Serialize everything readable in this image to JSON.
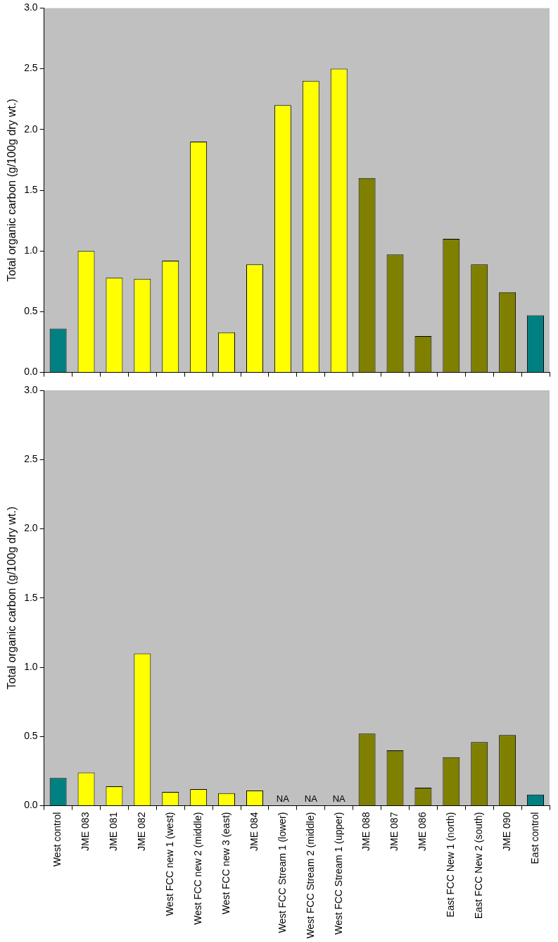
{
  "chart_data": [
    {
      "type": "bar",
      "ylabel": "Total organic carbon (g/100g dry wt.)",
      "tick_labels": "y",
      "grid": false,
      "categories": [
        null,
        null,
        null,
        null,
        null,
        null,
        null,
        null,
        null,
        null,
        null,
        null,
        null,
        null,
        null,
        null,
        null,
        null
      ],
      "values": [
        0.36,
        1.0,
        0.78,
        0.77,
        0.92,
        1.9,
        0.33,
        0.89,
        2.2,
        2.4,
        2.5,
        1.6,
        0.97,
        0.3,
        1.1,
        0.89,
        0.66,
        0.47
      ],
      "colors": [
        "#008080",
        "#ffff00",
        "#ffff00",
        "#ffff00",
        "#ffff00",
        "#ffff00",
        "#ffff00",
        "#ffff00",
        "#ffff00",
        "#ffff00",
        "#ffff00",
        "#808000",
        "#808000",
        "#808000",
        "#808000",
        "#808000",
        "#808000",
        "#008080"
      ],
      "ylim": [
        0,
        3
      ],
      "yticks": [
        {
          "value": 0,
          "label": "0.0"
        },
        {
          "value": 0.5,
          "label": "0.5"
        },
        {
          "value": 1,
          "label": "1.0"
        },
        {
          "value": 1.5,
          "label": "1.5"
        },
        {
          "value": 2,
          "label": "2.0"
        },
        {
          "value": 2.5,
          "label": "2.5"
        },
        {
          "value": 3,
          "label": "3.0"
        }
      ]
    },
    {
      "type": "bar",
      "ylabel": "Total organic carbon (g/100g dry wt.)",
      "grid": false,
      "categories": [
        "West control",
        "JME 083",
        "JME 081",
        "JME 082",
        "West FCC new 1 (west)",
        "West FCC new 2 (middle)",
        "West FCC new 3 (east)",
        "JME 084",
        "West FCC Stream 1 (lower)",
        "West FCC Stream 2 (middle)",
        "West FCC Stream 1 (upper)",
        "JME 088",
        "JME 087",
        "JME 086",
        "East FCC New 1 (north)",
        "East FCC New 2 (south)",
        "JME 090",
        "East control"
      ],
      "values": [
        0.2,
        0.24,
        0.14,
        1.1,
        0.1,
        0.12,
        0.09,
        0.11,
        null,
        null,
        null,
        0.52,
        0.4,
        0.13,
        0.35,
        0.46,
        0.51,
        0.08
      ],
      "value_labels": [
        null,
        null,
        null,
        null,
        null,
        null,
        null,
        null,
        "NA",
        "NA",
        "NA",
        null,
        null,
        null,
        null,
        null,
        null,
        null
      ],
      "colors": [
        "#008080",
        "#ffff00",
        "#ffff00",
        "#ffff00",
        "#ffff00",
        "#ffff00",
        "#ffff00",
        "#ffff00",
        "#ffff00",
        "#ffff00",
        "#ffff00",
        "#808000",
        "#808000",
        "#808000",
        "#808000",
        "#808000",
        "#808000",
        "#008080"
      ],
      "ylim": [
        0,
        3
      ],
      "yticks": [
        {
          "value": 0,
          "label": "0.0"
        },
        {
          "value": 0.5,
          "label": "0.5"
        },
        {
          "value": 1,
          "label": "1.0"
        },
        {
          "value": 1.5,
          "label": "1.5"
        },
        {
          "value": 2,
          "label": "2.0"
        },
        {
          "value": 2.5,
          "label": "2.5"
        },
        {
          "value": 3,
          "label": "3.0"
        }
      ]
    }
  ]
}
